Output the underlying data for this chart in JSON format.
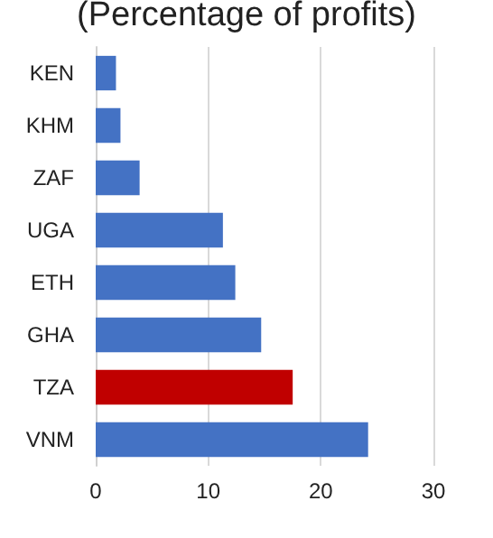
{
  "chart_data": {
    "type": "bar",
    "orientation": "horizontal",
    "title": "(Percentage of profits)",
    "categories": [
      "KEN",
      "KHM",
      "ZAF",
      "UGA",
      "ETH",
      "GHA",
      "TZA",
      "VNM"
    ],
    "values": [
      1.8,
      2.2,
      3.9,
      11.3,
      12.4,
      14.7,
      17.5,
      24.2
    ],
    "colors": [
      "#4472c4",
      "#4472c4",
      "#4472c4",
      "#4472c4",
      "#4472c4",
      "#4472c4",
      "#c00000",
      "#4472c4"
    ],
    "xlim": [
      0,
      30
    ],
    "xticks": [
      0,
      10,
      20,
      30
    ],
    "grid": "x"
  }
}
